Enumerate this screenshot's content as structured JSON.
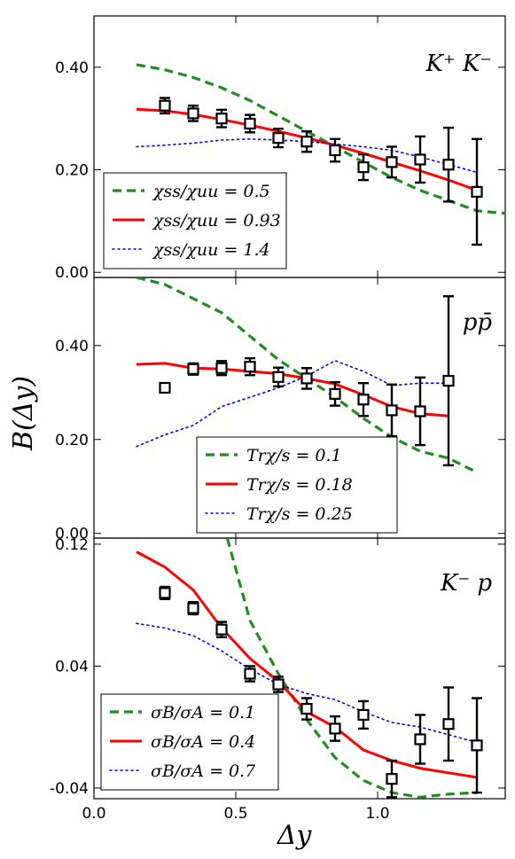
{
  "figure": {
    "ylabel": "B(Δy)",
    "xlabel": "Δy",
    "xlim": [
      0.0,
      1.45
    ],
    "xticks": [
      0.0,
      0.5,
      1.0
    ],
    "xtick_labels": [
      "0.0",
      "0.5",
      "1.0"
    ]
  },
  "chart_data": [
    {
      "type": "line",
      "panel_label": "K⁺ K⁻",
      "ylim": [
        -0.01,
        0.5
      ],
      "yticks": [
        0.0,
        0.2,
        0.4
      ],
      "ytick_labels": [
        "0.00",
        "0.20",
        "0.40"
      ],
      "legend_position": "lower-left",
      "series": [
        {
          "name": "χss/χuu = 0.5",
          "style": "dashed",
          "color": "#228b22",
          "x": [
            0.15,
            0.25,
            0.35,
            0.45,
            0.55,
            0.65,
            0.75,
            0.85,
            0.95,
            1.05,
            1.15,
            1.25,
            1.35,
            1.45
          ],
          "y": [
            0.405,
            0.395,
            0.38,
            0.36,
            0.335,
            0.305,
            0.275,
            0.245,
            0.215,
            0.185,
            0.16,
            0.14,
            0.12,
            0.115
          ]
        },
        {
          "name": "χss/χuu = 0.93",
          "style": "solid",
          "color": "#ff0000",
          "x": [
            0.15,
            0.25,
            0.35,
            0.45,
            0.55,
            0.65,
            0.75,
            0.85,
            0.95,
            1.05,
            1.15,
            1.25,
            1.35
          ],
          "y": [
            0.318,
            0.315,
            0.308,
            0.298,
            0.287,
            0.275,
            0.262,
            0.248,
            0.232,
            0.215,
            0.198,
            0.18,
            0.16
          ]
        },
        {
          "name": "χss/χuu = 1.4",
          "style": "dotted",
          "color": "#0000ff",
          "x": [
            0.15,
            0.25,
            0.35,
            0.45,
            0.55,
            0.65,
            0.75,
            0.85,
            0.95,
            1.05,
            1.15,
            1.25,
            1.35
          ],
          "y": [
            0.245,
            0.248,
            0.252,
            0.258,
            0.26,
            0.258,
            0.255,
            0.25,
            0.245,
            0.238,
            0.225,
            0.21,
            0.195
          ]
        }
      ],
      "data": {
        "x": [
          0.25,
          0.35,
          0.45,
          0.55,
          0.65,
          0.75,
          0.85,
          0.95,
          1.05,
          1.15,
          1.25,
          1.35
        ],
        "y": [
          0.325,
          0.31,
          0.3,
          0.29,
          0.262,
          0.255,
          0.238,
          0.205,
          0.215,
          0.22,
          0.21,
          0.157
        ],
        "err": [
          0.015,
          0.015,
          0.017,
          0.017,
          0.018,
          0.02,
          0.022,
          0.025,
          0.03,
          0.045,
          0.072,
          0.103
        ]
      }
    },
    {
      "type": "line",
      "panel_label": "pp̄",
      "ylim": [
        -0.01,
        0.545
      ],
      "yticks": [
        0.0,
        0.2,
        0.4
      ],
      "ytick_labels": [
        "0.00",
        "0.20",
        "0.40"
      ],
      "legend_position": "lower-right",
      "series": [
        {
          "name": "Trχ/s = 0.1",
          "style": "dashed",
          "color": "#228b22",
          "x": [
            0.15,
            0.25,
            0.35,
            0.45,
            0.55,
            0.65,
            0.75,
            0.85,
            0.95,
            1.05,
            1.15,
            1.25,
            1.35
          ],
          "y": [
            0.545,
            0.53,
            0.5,
            0.47,
            0.42,
            0.37,
            0.33,
            0.29,
            0.245,
            0.205,
            0.175,
            0.16,
            0.13
          ]
        },
        {
          "name": "Trχ/s = 0.18",
          "style": "solid",
          "color": "#ff0000",
          "x": [
            0.15,
            0.25,
            0.35,
            0.45,
            0.55,
            0.65,
            0.75,
            0.85,
            0.95,
            1.05,
            1.15,
            1.25
          ],
          "y": [
            0.36,
            0.362,
            0.352,
            0.35,
            0.345,
            0.34,
            0.33,
            0.318,
            0.295,
            0.27,
            0.255,
            0.25
          ]
        },
        {
          "name": "Trχ/s = 0.25",
          "style": "dotted",
          "color": "#0000ff",
          "x": [
            0.15,
            0.25,
            0.35,
            0.45,
            0.55,
            0.65,
            0.75,
            0.85,
            0.95,
            1.05,
            1.15,
            1.25
          ],
          "y": [
            0.185,
            0.21,
            0.23,
            0.27,
            0.29,
            0.31,
            0.335,
            0.368,
            0.345,
            0.315,
            0.32,
            0.32
          ]
        }
      ],
      "data": {
        "x": [
          0.25,
          0.35,
          0.45,
          0.55,
          0.65,
          0.75,
          0.85,
          0.95,
          1.05,
          1.15,
          1.25
        ],
        "y": [
          0.31,
          0.35,
          0.352,
          0.355,
          0.333,
          0.33,
          0.297,
          0.285,
          0.262,
          0.26,
          0.325
        ],
        "err": [
          0.01,
          0.012,
          0.015,
          0.018,
          0.02,
          0.022,
          0.025,
          0.035,
          0.055,
          0.072,
          0.18
        ]
      }
    },
    {
      "type": "line",
      "panel_label": "K⁻ p",
      "ylim": [
        -0.047,
        0.124
      ],
      "yticks": [
        -0.04,
        0.04,
        0.12
      ],
      "ytick_labels": [
        "-0.04",
        "0.04",
        "0.12"
      ],
      "legend_position": "lower-left",
      "series": [
        {
          "name": "σB/σA = 0.1",
          "style": "dashed",
          "color": "#228b22",
          "x": [
            0.47,
            0.55,
            0.65,
            0.75,
            0.85,
            0.95,
            1.05,
            1.15,
            1.25,
            1.35
          ],
          "y": [
            0.124,
            0.07,
            0.035,
            0.005,
            -0.02,
            -0.035,
            -0.043,
            -0.046,
            -0.044,
            -0.043
          ]
        },
        {
          "name": "σB/σA = 0.4",
          "style": "solid",
          "color": "#ff0000",
          "x": [
            0.15,
            0.25,
            0.35,
            0.45,
            0.55,
            0.65,
            0.75,
            0.85,
            0.95,
            1.05,
            1.15,
            1.25,
            1.35
          ],
          "y": [
            0.115,
            0.105,
            0.09,
            0.065,
            0.045,
            0.03,
            0.01,
            0.0,
            -0.015,
            -0.022,
            -0.027,
            -0.03,
            -0.033
          ]
        },
        {
          "name": "σB/σA = 0.7",
          "style": "dotted",
          "color": "#0000ff",
          "x": [
            0.15,
            0.25,
            0.35,
            0.45,
            0.55,
            0.65,
            0.75,
            0.85,
            0.95,
            1.05,
            1.15,
            1.25,
            1.35
          ],
          "y": [
            0.068,
            0.065,
            0.06,
            0.05,
            0.038,
            0.028,
            0.022,
            0.018,
            0.01,
            0.003,
            0.0,
            -0.005,
            -0.01
          ]
        }
      ],
      "data": {
        "x": [
          0.25,
          0.35,
          0.45,
          0.55,
          0.65,
          0.75,
          0.85,
          0.95,
          1.05,
          1.15,
          1.25,
          1.35
        ],
        "y": [
          0.088,
          0.078,
          0.064,
          0.035,
          0.028,
          0.012,
          -0.001,
          0.008,
          -0.034,
          -0.008,
          0.002,
          -0.012
        ],
        "err": [
          0.004,
          0.004,
          0.005,
          0.005,
          0.005,
          0.007,
          0.008,
          0.009,
          0.012,
          0.016,
          0.024,
          0.031
        ]
      }
    }
  ]
}
